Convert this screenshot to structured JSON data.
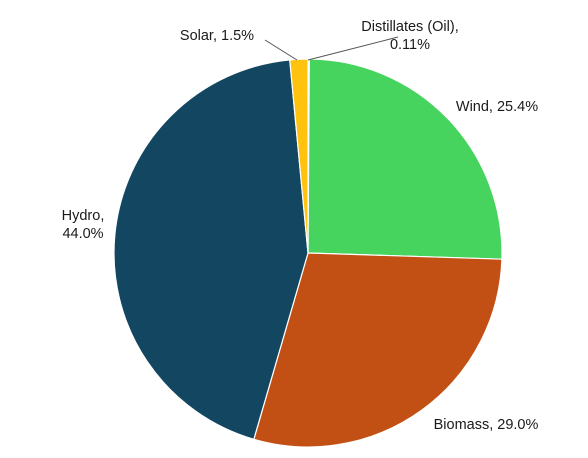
{
  "chart_data": {
    "type": "pie",
    "title": "",
    "start_angle_deg": 0,
    "direction": "clockwise",
    "slices": [
      {
        "name": "Distillates (Oil)",
        "value": 0.11,
        "label_lines": [
          "Distillates (Oil),",
          "0.11%"
        ],
        "color": "#f4f4f4"
      },
      {
        "name": "Wind",
        "value": 25.4,
        "label_lines": [
          "Wind, 25.4%"
        ],
        "color": "#47d45e"
      },
      {
        "name": "Biomass",
        "value": 29.0,
        "label_lines": [
          "Biomass, 29.0%"
        ],
        "color": "#c25014"
      },
      {
        "name": "Hydro",
        "value": 44.0,
        "label_lines": [
          "Hydro,",
          "44.0%"
        ],
        "color": "#124661"
      },
      {
        "name": "Solar",
        "value": 1.5,
        "label_lines": [
          "Solar, 1.5%"
        ],
        "color": "#ffc20e"
      }
    ]
  }
}
